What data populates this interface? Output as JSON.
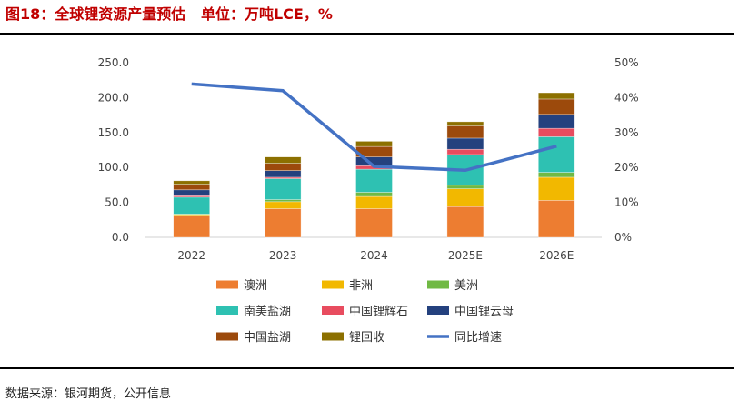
{
  "title": "图18：全球锂资源产量预估   单位：万吨LCE，%",
  "source": "数据来源：银河期货，公开信息",
  "chart_data": {
    "type": "bar",
    "stacked": true,
    "categories": [
      "2022",
      "2023",
      "2024",
      "2025E",
      "2026E"
    ],
    "ylim": [
      0,
      250
    ],
    "yticks": [
      "0.0",
      "50.0",
      "100.0",
      "150.0",
      "200.0",
      "250.0"
    ],
    "y2lim": [
      0,
      50
    ],
    "y2ticks": [
      "0%",
      "10%",
      "20%",
      "30%",
      "40%",
      "50%"
    ],
    "grid": false,
    "legend": "bottom",
    "series": [
      {
        "name": "澳洲",
        "color": "#ed7d31",
        "values": [
          31,
          41,
          41,
          44,
          53
        ]
      },
      {
        "name": "非洲",
        "color": "#f2b800",
        "values": [
          1.5,
          10,
          17.5,
          25.5,
          33
        ]
      },
      {
        "name": "美洲",
        "color": "#70b944",
        "values": [
          1,
          3,
          6,
          5,
          7
        ]
      },
      {
        "name": "南美盐湖",
        "color": "#2ec1b2",
        "values": [
          24,
          30,
          33,
          44,
          51
        ]
      },
      {
        "name": "中国锂辉石",
        "color": "#e84c5f",
        "values": [
          2,
          2,
          5,
          7.5,
          12
        ]
      },
      {
        "name": "中国锂云母",
        "color": "#24417e",
        "values": [
          8.5,
          9.5,
          12.5,
          16,
          20
        ]
      },
      {
        "name": "中国盐湖",
        "color": "#9c4a0c",
        "values": [
          8,
          10.5,
          15,
          17.5,
          22
        ]
      },
      {
        "name": "锂回收",
        "color": "#8c7000",
        "values": [
          5,
          9,
          7.5,
          6,
          9
        ]
      }
    ],
    "line": {
      "name": "同比增速",
      "color": "#4472c4",
      "axis": "right",
      "values": [
        43.9,
        42,
        20.3,
        19.2,
        26.1
      ]
    }
  }
}
